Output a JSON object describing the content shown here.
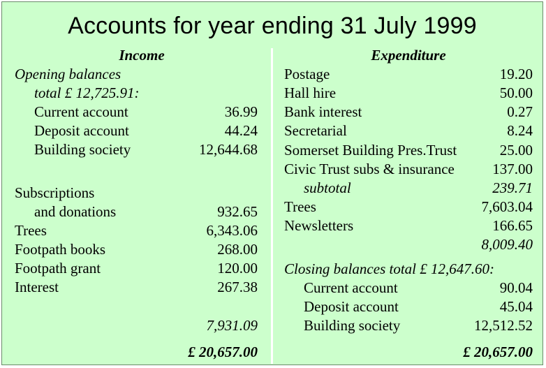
{
  "title": "Accounts for year ending 31 July 1999",
  "income": {
    "heading": "Income",
    "opening_label": "Opening balances",
    "opening_total": "total £ 12,725.91:",
    "opening_items": [
      {
        "label": "Current account",
        "value": "36.99"
      },
      {
        "label": "Deposit account",
        "value": "44.24"
      },
      {
        "label": "Building society",
        "value": "12,644.68"
      }
    ],
    "subs_label_1": "Subscriptions",
    "subs_label_2": "and donations",
    "subs_value": "932.65",
    "items": [
      {
        "label": "Trees",
        "value": "6,343.06"
      },
      {
        "label": "Footpath books",
        "value": "268.00"
      },
      {
        "label": "Footpath grant",
        "value": "120.00"
      },
      {
        "label": "Interest",
        "value": "267.38"
      }
    ],
    "subtotal": "7,931.09",
    "total": "£ 20,657.00"
  },
  "expenditure": {
    "heading": "Expenditure",
    "items": [
      {
        "label": "Postage",
        "value": "19.20"
      },
      {
        "label": "Hall hire",
        "value": "50.00"
      },
      {
        "label": "Bank interest",
        "value": "0.27"
      },
      {
        "label": "Secretarial",
        "value": "8.24"
      },
      {
        "label": "Somerset Building Pres.Trust",
        "value": "25.00"
      },
      {
        "label": "Civic Trust subs & insurance",
        "value": "137.00"
      }
    ],
    "subtotal_label": "subtotal",
    "subtotal_value": "239.71",
    "items2": [
      {
        "label": "Trees",
        "value": "7,603.04"
      },
      {
        "label": "Newsletters",
        "value": "166.65"
      }
    ],
    "running_total": "8,009.40",
    "closing_label": "Closing balances total £ 12,647.60:",
    "closing_items": [
      {
        "label": "Current account",
        "value": "90.04"
      },
      {
        "label": "Deposit account",
        "value": "45.04"
      },
      {
        "label": "Building society",
        "value": "12,512.52"
      }
    ],
    "total": "£ 20,657.00"
  }
}
